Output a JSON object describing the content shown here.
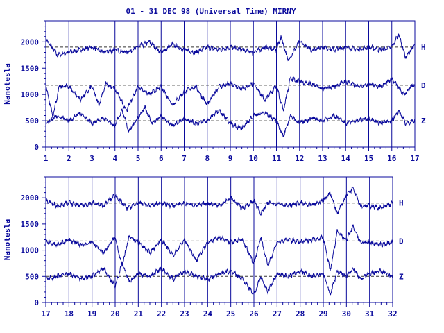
{
  "title": "01 - 31 DEC 98 (Universal Time) MIRNY",
  "ylabel": "Nanotesla",
  "colors": {
    "trace": "#0a0a9c",
    "frame": "#0a0a9c",
    "text": "#0a0a9c",
    "background": "#ffffff"
  },
  "chart_data": [
    {
      "type": "line",
      "title": "01 - 31 DEC 98 (Universal Time) MIRNY",
      "ylabel": "Nanotesla",
      "xlim": [
        1,
        17
      ],
      "ylim": [
        0,
        2400
      ],
      "x_ticks": [
        "1",
        "2",
        "3",
        "4",
        "5",
        "6",
        "7",
        "8",
        "9",
        "10",
        "11",
        "12",
        "13",
        "14",
        "15",
        "16",
        "17"
      ],
      "y_ticks": [
        0,
        500,
        1000,
        1500,
        2000
      ],
      "grid": "vertical day lines",
      "series": [
        {
          "name": "H",
          "baseline": 1900,
          "x": [
            1,
            1.5,
            2,
            2.5,
            3,
            3.5,
            4,
            4.5,
            5,
            5.5,
            6,
            6.5,
            7,
            7.5,
            8,
            8.5,
            9,
            9.5,
            10,
            10.5,
            11,
            11.2,
            11.5,
            12,
            12.5,
            13,
            13.5,
            14,
            14.5,
            15,
            15.5,
            16,
            16.3,
            16.6,
            17
          ],
          "values": [
            2050,
            1750,
            1800,
            1850,
            1900,
            1800,
            1850,
            1800,
            1900,
            2000,
            1800,
            1950,
            1850,
            1800,
            1900,
            1850,
            1900,
            1850,
            1800,
            1900,
            1850,
            2100,
            1650,
            2000,
            1850,
            1900,
            1850,
            1900,
            1850,
            1900,
            1850,
            1900,
            2150,
            1700,
            1950
          ]
        },
        {
          "name": "D",
          "baseline": 1175,
          "x": [
            1,
            1.3,
            1.6,
            2,
            2.5,
            3,
            3.3,
            3.6,
            4,
            4.5,
            5,
            5.5,
            6,
            6.5,
            7,
            7.5,
            8,
            8.5,
            9,
            9.5,
            10,
            10.5,
            11,
            11.3,
            11.6,
            12,
            12.5,
            13,
            13.5,
            14,
            14.5,
            15,
            15.5,
            16,
            16.5,
            17
          ],
          "values": [
            1150,
            600,
            1150,
            1150,
            900,
            1150,
            800,
            1200,
            1100,
            700,
            1150,
            1000,
            1150,
            800,
            1050,
            1150,
            800,
            1150,
            1200,
            1100,
            1200,
            900,
            1150,
            700,
            1300,
            1250,
            1200,
            1100,
            1150,
            1250,
            1150,
            1200,
            1150,
            1300,
            1000,
            1200
          ]
        },
        {
          "name": "Z",
          "baseline": 500,
          "x": [
            1,
            1.5,
            2,
            2.5,
            3,
            3.5,
            4,
            4.3,
            4.6,
            5,
            5.3,
            5.6,
            6,
            6.5,
            7,
            7.5,
            8,
            8.5,
            9,
            9.5,
            10,
            10.5,
            11,
            11.3,
            11.6,
            12,
            12.5,
            13,
            13.5,
            14,
            14.5,
            15,
            15.5,
            16,
            16.3,
            16.6,
            17
          ],
          "values": [
            450,
            600,
            500,
            650,
            450,
            550,
            400,
            700,
            300,
            550,
            750,
            450,
            600,
            400,
            550,
            450,
            500,
            700,
            450,
            350,
            600,
            650,
            500,
            200,
            600,
            450,
            550,
            500,
            600,
            450,
            500,
            550,
            450,
            500,
            700,
            450,
            500
          ]
        }
      ]
    },
    {
      "type": "line",
      "ylabel": "Nanotesla",
      "xlim": [
        17,
        32
      ],
      "ylim": [
        0,
        2400
      ],
      "x_ticks": [
        "17",
        "18",
        "19",
        "20",
        "21",
        "22",
        "23",
        "24",
        "25",
        "26",
        "27",
        "28",
        "29",
        "30",
        "31",
        "32"
      ],
      "y_ticks": [
        0,
        500,
        1000,
        1500,
        2000
      ],
      "grid": "vertical day lines",
      "series": [
        {
          "name": "H",
          "baseline": 1900,
          "x": [
            17,
            17.5,
            18,
            18.5,
            19,
            19.5,
            20,
            20.5,
            21,
            21.5,
            22,
            22.5,
            23,
            23.5,
            24,
            24.5,
            25,
            25.5,
            26,
            26.3,
            26.6,
            27,
            27.5,
            28,
            28.5,
            29,
            29.3,
            29.6,
            30,
            30.3,
            30.6,
            31,
            31.5,
            32
          ],
          "values": [
            1950,
            1850,
            1900,
            1850,
            1900,
            1850,
            2050,
            1800,
            1900,
            1850,
            1900,
            1850,
            1900,
            1850,
            1900,
            1850,
            2000,
            1800,
            1950,
            1700,
            1900,
            1900,
            1850,
            1900,
            1850,
            1950,
            2100,
            1700,
            2050,
            2200,
            1850,
            1850,
            1800,
            1900
          ]
        },
        {
          "name": "D",
          "baseline": 1175,
          "x": [
            17,
            17.5,
            18,
            18.5,
            19,
            19.5,
            20,
            20.3,
            20.6,
            21,
            21.5,
            22,
            22.5,
            23,
            23.5,
            24,
            24.5,
            25,
            25.5,
            26,
            26.3,
            26.6,
            27,
            27.5,
            28,
            28.5,
            29,
            29.3,
            29.6,
            30,
            30.3,
            30.6,
            31,
            31.5,
            32
          ],
          "values": [
            1150,
            1100,
            1200,
            1100,
            1150,
            950,
            1250,
            700,
            1250,
            1150,
            950,
            1200,
            900,
            1200,
            800,
            1150,
            1250,
            1150,
            1200,
            750,
            1250,
            700,
            1150,
            1200,
            1150,
            1200,
            1250,
            600,
            1350,
            1200,
            1450,
            1150,
            1150,
            1100,
            1150
          ]
        },
        {
          "name": "Z",
          "baseline": 500,
          "x": [
            17,
            17.5,
            18,
            18.5,
            19,
            19.5,
            20,
            20.3,
            20.6,
            21,
            21.5,
            22,
            22.5,
            23,
            23.5,
            24,
            24.5,
            25,
            25.5,
            26,
            26.3,
            26.6,
            27,
            27.5,
            28,
            28.5,
            29,
            29.3,
            29.6,
            30,
            30.3,
            30.6,
            31,
            31.5,
            32
          ],
          "values": [
            450,
            500,
            550,
            450,
            500,
            650,
            300,
            750,
            400,
            550,
            500,
            650,
            450,
            600,
            500,
            450,
            550,
            600,
            450,
            150,
            500,
            200,
            550,
            500,
            600,
            500,
            550,
            150,
            600,
            500,
            650,
            450,
            550,
            600,
            500
          ]
        }
      ]
    }
  ]
}
